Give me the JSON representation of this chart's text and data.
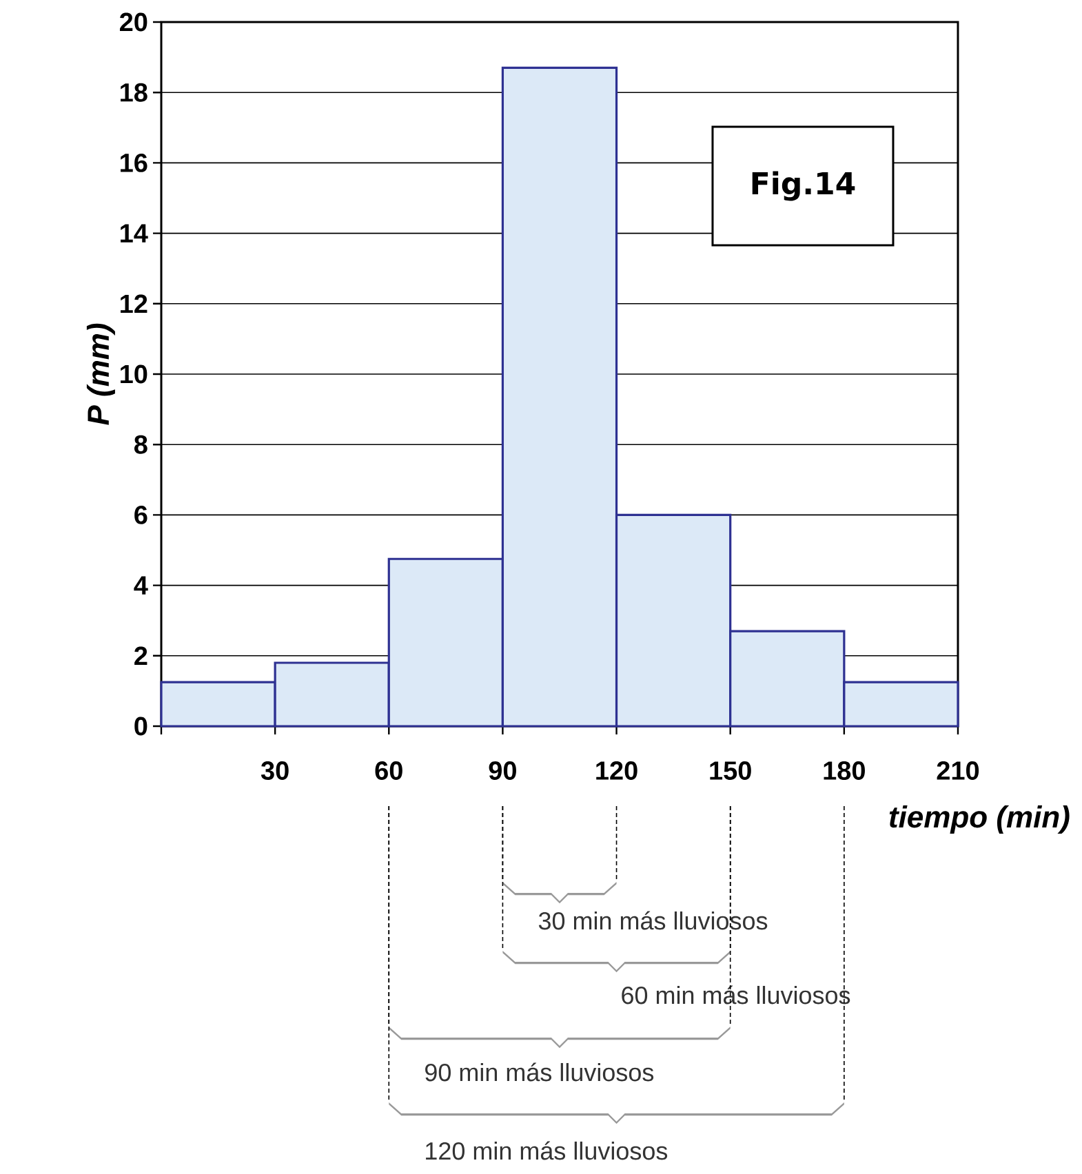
{
  "chart_data": {
    "type": "histogram",
    "bins": [
      0,
      30,
      60,
      90,
      120,
      150,
      180,
      210
    ],
    "values": [
      1.25,
      1.8,
      4.75,
      18.7,
      6.0,
      2.7,
      1.25
    ],
    "color": "#dce9f7",
    "xlabel": "tiempo (min)",
    "ylabel": "P (mm)",
    "xlim": [
      0,
      210
    ],
    "ylim": [
      0,
      20
    ],
    "xticks": [
      {
        "value": 0,
        "label": null
      },
      30,
      60,
      90,
      120,
      150,
      180,
      210
    ],
    "yticks": [
      0,
      2,
      4,
      6,
      8,
      10,
      12,
      14,
      16,
      18,
      20
    ],
    "grid": "y",
    "annotations": [
      "Fig.14",
      "30 min más lluviosos",
      "60 min más lluviosos",
      "90 min más lluviosos",
      "120 min más lluviosos"
    ]
  }
}
